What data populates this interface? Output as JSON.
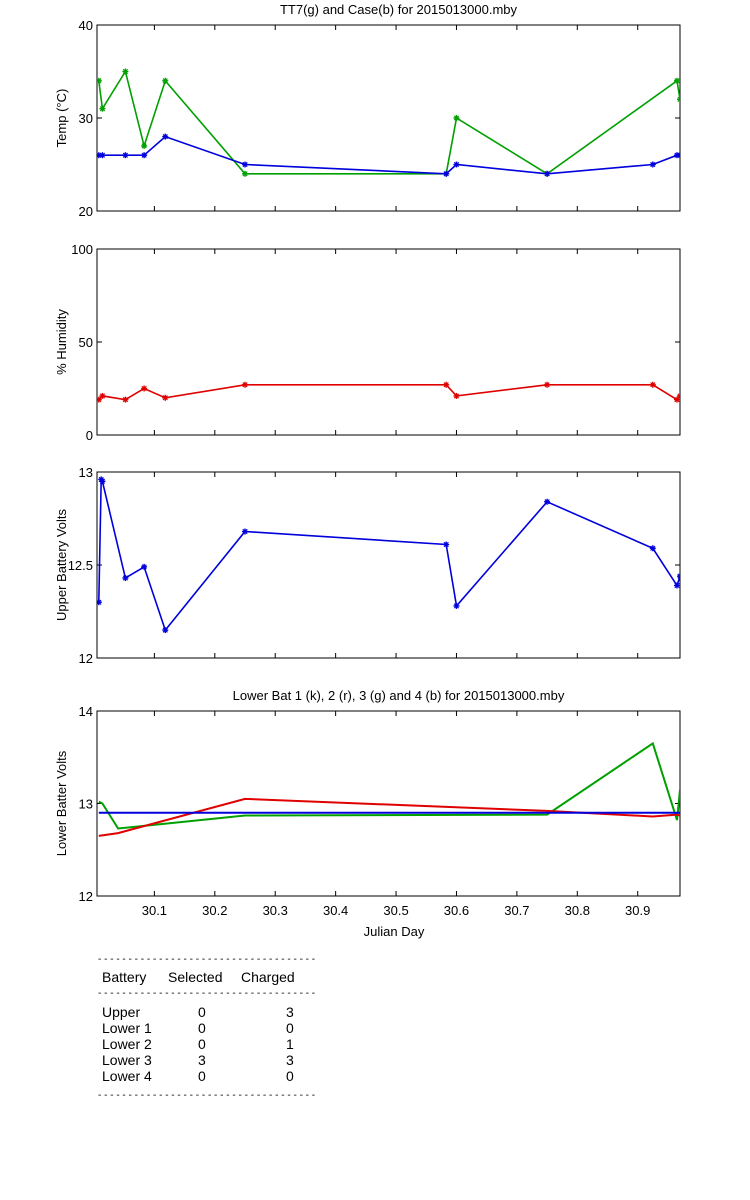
{
  "xticks": [
    "30.1",
    "30.2",
    "30.3",
    "30.4",
    "30.5",
    "30.6",
    "30.7",
    "30.8",
    "30.9"
  ],
  "xlabel": "Julian Day",
  "chart_data": [
    {
      "type": "line",
      "title": "TT7(g) and Case(b) for 2015013000.mby",
      "ylabel": "Temp (°C)",
      "xlim": [
        30.005,
        30.97
      ],
      "ylim": [
        20,
        40
      ],
      "yticks": [
        "20",
        "30",
        "40"
      ],
      "grid": false,
      "series": [
        {
          "color": "#00a000",
          "x": [
            30.008,
            30.014,
            30.052,
            30.083,
            30.118,
            30.25,
            30.583,
            30.6,
            30.75,
            30.965,
            30.97
          ],
          "y": [
            34,
            31,
            35,
            27,
            34,
            24,
            24,
            30,
            24,
            34,
            32
          ]
        },
        {
          "color": "#0000dd",
          "x": [
            30.008,
            30.014,
            30.052,
            30.083,
            30.118,
            30.25,
            30.583,
            30.6,
            30.75,
            30.925,
            30.965,
            30.97
          ],
          "y": [
            26,
            26,
            26,
            26,
            28,
            25,
            24,
            25,
            24,
            25,
            26,
            26
          ]
        }
      ]
    },
    {
      "type": "line",
      "title": "",
      "ylabel": "% Humidity",
      "xlim": [
        30.005,
        30.97
      ],
      "ylim": [
        0,
        100
      ],
      "yticks": [
        "0",
        "50",
        "100"
      ],
      "grid": false,
      "series": [
        {
          "color": "#e00000",
          "x": [
            30.008,
            30.014,
            30.052,
            30.083,
            30.118,
            30.25,
            30.583,
            30.6,
            30.75,
            30.925,
            30.965,
            30.97
          ],
          "y": [
            19,
            21,
            19,
            25,
            20,
            27,
            27,
            21,
            27,
            27,
            19,
            21
          ]
        }
      ]
    },
    {
      "type": "line",
      "title": "",
      "ylabel": "Upper Battery Volts",
      "xlim": [
        30.005,
        30.97
      ],
      "ylim": [
        12,
        13
      ],
      "yticks": [
        "12",
        "12.5",
        "13"
      ],
      "grid": false,
      "series": [
        {
          "color": "#0000dd",
          "x": [
            30.008,
            30.012,
            30.014,
            30.052,
            30.083,
            30.118,
            30.25,
            30.583,
            30.6,
            30.75,
            30.925,
            30.965,
            30.97
          ],
          "y": [
            12.3,
            12.96,
            12.95,
            12.43,
            12.49,
            12.15,
            12.68,
            12.61,
            12.28,
            12.84,
            12.59,
            12.39,
            12.44
          ]
        }
      ]
    },
    {
      "type": "line",
      "title": "Lower Bat 1 (k), 2 (r), 3 (g) and 4 (b) for 2015013000.mby",
      "ylabel": "Lower Batter Volts",
      "xlim": [
        30.005,
        30.97
      ],
      "ylim": [
        12,
        14
      ],
      "yticks": [
        "12",
        "13",
        "14"
      ],
      "grid": false,
      "series": [
        {
          "color": "#00a000",
          "x": [
            30.008,
            30.014,
            30.04,
            30.25,
            30.75,
            30.925,
            30.965,
            30.97
          ],
          "y": [
            13.02,
            13.0,
            12.73,
            12.87,
            12.88,
            13.65,
            12.82,
            13.15
          ]
        },
        {
          "color": "#e00000",
          "x": [
            30.008,
            30.04,
            30.25,
            30.75,
            30.925,
            30.965,
            30.97
          ],
          "y": [
            12.65,
            12.68,
            13.05,
            12.92,
            12.86,
            12.88,
            12.87
          ]
        },
        {
          "color": "#0000dd",
          "x": [
            30.008,
            30.97
          ],
          "y": [
            12.9,
            12.9
          ]
        }
      ]
    }
  ],
  "table": {
    "headers": [
      "Battery",
      "Selected",
      "Charged"
    ],
    "rows": [
      [
        "Upper",
        "0",
        "3"
      ],
      [
        "Lower 1",
        "0",
        "0"
      ],
      [
        "Lower 2",
        "0",
        "1"
      ],
      [
        "Lower 3",
        "3",
        "3"
      ],
      [
        "Lower 4",
        "0",
        "0"
      ]
    ]
  },
  "colors": {
    "green": "#00a000",
    "blue": "#0000dd",
    "red": "#e00000"
  }
}
